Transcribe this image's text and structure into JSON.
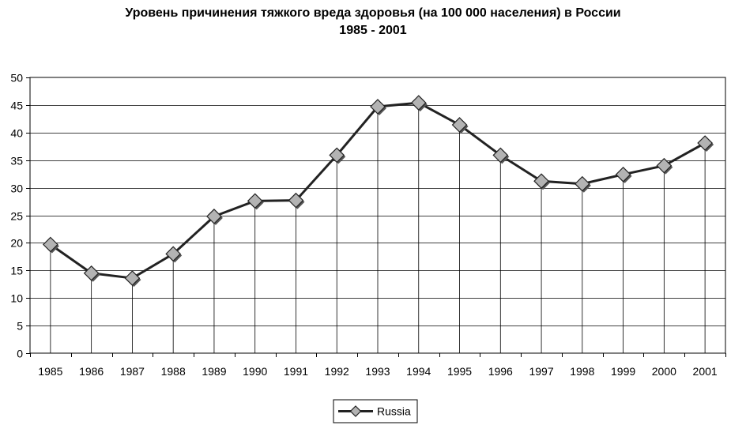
{
  "chart_data": {
    "type": "line",
    "title": "Уровень причинения тяжкого вреда здоровья (на 100 000 населения) в России",
    "subtitle": "1985 - 2001",
    "xlabel": "",
    "ylabel": "",
    "categories": [
      "1985",
      "1986",
      "1987",
      "1988",
      "1989",
      "1990",
      "1991",
      "1992",
      "1993",
      "1994",
      "1995",
      "1996",
      "1997",
      "1998",
      "1999",
      "2000",
      "2001"
    ],
    "y_ticks": [
      "0",
      "5",
      "10",
      "15",
      "20",
      "25",
      "30",
      "35",
      "40",
      "45",
      "50"
    ],
    "ylim": [
      0,
      50
    ],
    "grid": "horizontal and vertical drop lines",
    "legend_position": "bottom-center",
    "series": [
      {
        "name": "Russia",
        "values": [
          19.7,
          14.5,
          13.6,
          18.0,
          24.8,
          27.6,
          27.7,
          35.9,
          44.7,
          45.4,
          41.4,
          35.9,
          31.2,
          30.7,
          32.4,
          34.0,
          38.1
        ],
        "color": "#222222",
        "marker": "diamond",
        "marker_color": "#b3b3b3"
      }
    ]
  }
}
